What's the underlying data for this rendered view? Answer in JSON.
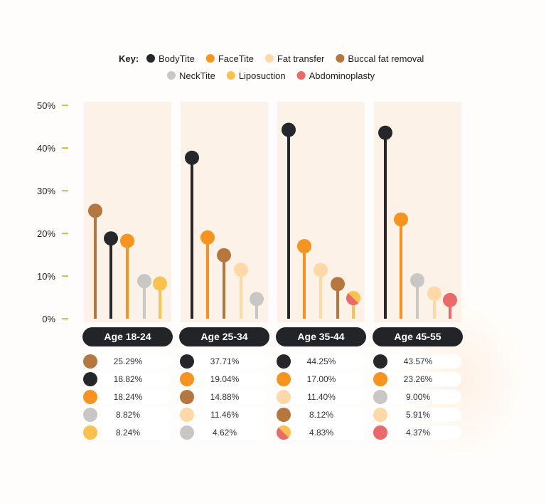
{
  "key": {
    "title": "Key:",
    "items": [
      {
        "label": "BodyTite",
        "color": "#25272b"
      },
      {
        "label": "FaceTite",
        "color": "#f79420"
      },
      {
        "label": "Fat transfer",
        "color": "#fcd9a6"
      },
      {
        "label": "Buccal fat removal",
        "color": "#b5773e"
      },
      {
        "label": "NeckTite",
        "color": "#c9c6c6"
      },
      {
        "label": "Liposuction",
        "color": "#fbc14d"
      },
      {
        "label": "Abdominoplasty",
        "color": "#e96a68"
      }
    ]
  },
  "colors": {
    "tick_dash": "#f3b24a",
    "column_bg": "#fdf2e7",
    "pill_bg": "#222428",
    "row_bg": "#ffffff"
  },
  "chart_data": {
    "type": "lollipop",
    "y_ticks": [
      "50%",
      "40%",
      "30%",
      "20%",
      "10%",
      "0%"
    ],
    "ylim": [
      0,
      50
    ],
    "groups": [
      {
        "name": "Age 18-24",
        "items": [
          {
            "series": "Buccal fat removal",
            "value": 25.29,
            "label": "25.29%"
          },
          {
            "series": "BodyTite",
            "value": 18.82,
            "label": "18.82%"
          },
          {
            "series": "FaceTite",
            "value": 18.24,
            "label": "18.24%"
          },
          {
            "series": "NeckTite",
            "value": 8.82,
            "label": "8.82%"
          },
          {
            "series": "Liposuction",
            "value": 8.24,
            "label": "8.24%"
          }
        ]
      },
      {
        "name": "Age 25-34",
        "items": [
          {
            "series": "BodyTite",
            "value": 37.71,
            "label": "37.71%"
          },
          {
            "series": "FaceTite",
            "value": 19.04,
            "label": "19.04%"
          },
          {
            "series": "Buccal fat removal",
            "value": 14.88,
            "label": "14.88%"
          },
          {
            "series": "Fat transfer",
            "value": 11.46,
            "label": "11.46%"
          },
          {
            "series": "NeckTite",
            "value": 4.62,
            "label": "4.62%"
          }
        ]
      },
      {
        "name": "Age 35-44",
        "items": [
          {
            "series": "BodyTite",
            "value": 44.25,
            "label": "44.25%"
          },
          {
            "series": "FaceTite",
            "value": 17.0,
            "label": "17.00%"
          },
          {
            "series": "Fat transfer",
            "value": 11.4,
            "label": "11.40%"
          },
          {
            "series": "Buccal fat removal",
            "value": 8.12,
            "label": "8.12%"
          },
          {
            "series": [
              "Liposuction",
              "Abdominoplasty"
            ],
            "value": 4.83,
            "label": "4.83%"
          }
        ]
      },
      {
        "name": "Age 45-55",
        "items": [
          {
            "series": "BodyTite",
            "value": 43.57,
            "label": "43.57%"
          },
          {
            "series": "FaceTite",
            "value": 23.26,
            "label": "23.26%"
          },
          {
            "series": "NeckTite",
            "value": 9.0,
            "label": "9.00%"
          },
          {
            "series": "Fat transfer",
            "value": 5.91,
            "label": "5.91%"
          },
          {
            "series": "Abdominoplasty",
            "value": 4.37,
            "label": "4.37%"
          }
        ]
      }
    ]
  }
}
